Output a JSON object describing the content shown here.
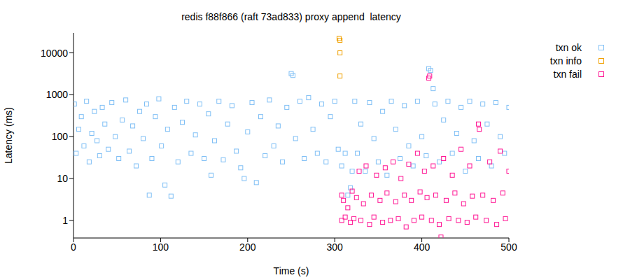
{
  "chart_data": {
    "type": "scatter",
    "title": "redis f88f866 (raft 73ad833) proxy append  latency",
    "x_label": "Time (s)",
    "y_label": "Latency (ms)",
    "xlim": [
      0,
      500
    ],
    "xticks": [
      0,
      100,
      200,
      300,
      400,
      500
    ],
    "ylim": [
      0.38,
      30000
    ],
    "yticks": [
      1,
      10,
      100,
      1000,
      10000
    ],
    "log": "y",
    "grid": false,
    "legend": "top right",
    "series": [
      {
        "name": "txn ok",
        "color": "#7fbff5",
        "marker": "square",
        "x": [
          1,
          3,
          6,
          9,
          12,
          15,
          18,
          21,
          24,
          27,
          30,
          33,
          36,
          40,
          44,
          48,
          52,
          56,
          60,
          64,
          68,
          72,
          76,
          80,
          84,
          87,
          90,
          94,
          98,
          101,
          105,
          108,
          112,
          116,
          120,
          125,
          130,
          135,
          140,
          145,
          150,
          155,
          158,
          162,
          167,
          172,
          177,
          182,
          187,
          192,
          196,
          200,
          205,
          210,
          215,
          220,
          225,
          230,
          235,
          240,
          245,
          250,
          252,
          255,
          260,
          265,
          270,
          275,
          280,
          285,
          290,
          295,
          300,
          304,
          308,
          312,
          315,
          318,
          320,
          323,
          326,
          330,
          335,
          340,
          345,
          350,
          355,
          360,
          365,
          370,
          375,
          380,
          385,
          390,
          395,
          400,
          405,
          408,
          410,
          413,
          415,
          420,
          425,
          430,
          435,
          440,
          445,
          450,
          455,
          460,
          465,
          470,
          475,
          480,
          485,
          490,
          495,
          500
        ],
        "values": [
          600,
          40,
          150,
          300,
          60,
          700,
          25,
          120,
          400,
          80,
          35,
          500,
          200,
          50,
          650,
          100,
          30,
          250,
          750,
          45,
          180,
          20,
          400,
          90,
          600,
          4,
          30,
          300,
          800,
          60,
          7,
          150,
          3.8,
          500,
          25,
          220,
          700,
          40,
          110,
          600,
          30,
          350,
          12,
          80,
          700,
          28,
          200,
          550,
          45,
          18,
          10,
          130,
          650,
          8,
          300,
          35,
          750,
          60,
          180,
          25,
          500,
          3200,
          2900,
          90,
          700,
          30,
          850,
          150,
          40,
          600,
          25,
          300,
          700,
          50,
          20,
          40,
          4,
          6,
          15,
          700,
          40,
          200,
          15,
          650,
          90,
          25,
          400,
          12,
          700,
          150,
          30,
          550,
          60,
          20,
          700,
          100,
          35,
          4200,
          3800,
          1400,
          600,
          25,
          250,
          700,
          40,
          120,
          500,
          15,
          700,
          80,
          30,
          600,
          200,
          20,
          650,
          100,
          40,
          500
        ]
      },
      {
        "name": "txn info",
        "color": "#f0a000",
        "marker": "square",
        "x": [
          305,
          306,
          306,
          306
        ],
        "values": [
          22000,
          20000,
          10000,
          2800
        ]
      },
      {
        "name": "txn fail",
        "color": "#ff1493",
        "marker": "square",
        "x": [
          308,
          308,
          310,
          312,
          315,
          318,
          320,
          322,
          325,
          328,
          330,
          333,
          336,
          340,
          342,
          345,
          348,
          352,
          355,
          358,
          360,
          364,
          367,
          370,
          373,
          376,
          380,
          382,
          385,
          388,
          391,
          395,
          398,
          400,
          403,
          406,
          408,
          409,
          411,
          413,
          416,
          420,
          422,
          425,
          428,
          431,
          435,
          438,
          442,
          445,
          448,
          452,
          455,
          458,
          462,
          465,
          466,
          470,
          474,
          478,
          482,
          486,
          490,
          493,
          496,
          500
        ],
        "values": [
          4,
          1,
          3,
          1.2,
          2,
          0.9,
          5,
          1.1,
          3.5,
          15,
          1,
          2.5,
          20,
          0.8,
          4,
          1.2,
          12,
          3,
          0.9,
          18,
          4.5,
          1,
          25,
          2.8,
          1.1,
          10,
          4,
          0.7,
          22,
          3,
          1,
          40,
          4.8,
          1.2,
          15,
          3.5,
          2500,
          2800,
          1,
          20,
          4,
          0.8,
          0.4,
          30,
          3,
          1.1,
          12,
          4.5,
          1,
          50,
          2.5,
          0.9,
          20,
          3.8,
          1.2,
          200,
          150,
          4,
          1,
          25,
          3,
          0.8,
          45,
          4.5,
          1.1,
          15
        ]
      }
    ]
  }
}
